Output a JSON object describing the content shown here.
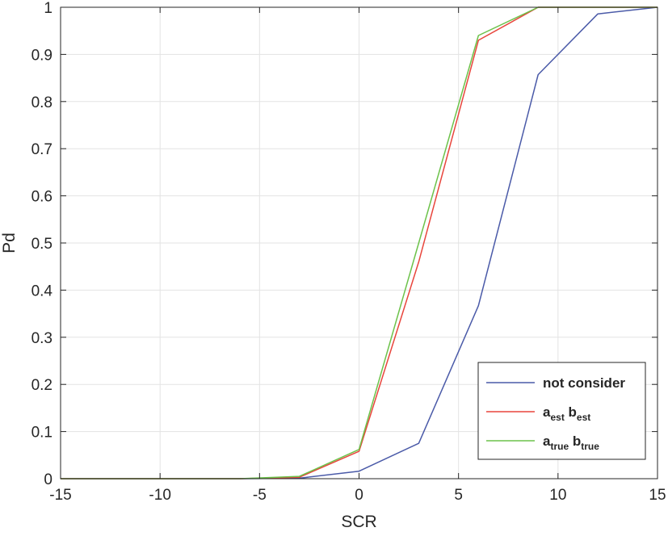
{
  "chart_data": {
    "type": "line",
    "title": "",
    "xlabel": "SCR",
    "ylabel": "Pd",
    "xlim": [
      -15,
      15
    ],
    "ylim": [
      0,
      1
    ],
    "xticks": [
      -15,
      -10,
      -5,
      0,
      5,
      10,
      15
    ],
    "xtick_labels": [
      "-15",
      "-10",
      "-5",
      "0",
      "5",
      "10",
      "15"
    ],
    "yticks": [
      0,
      0.1,
      0.2,
      0.3,
      0.4,
      0.5,
      0.6,
      0.7,
      0.8,
      0.9,
      1
    ],
    "ytick_labels": [
      "0",
      "0.1",
      "0.2",
      "0.3",
      "0.4",
      "0.5",
      "0.6",
      "0.7",
      "0.8",
      "0.9",
      "1"
    ],
    "grid": true,
    "legend_position": "bottom-right",
    "x": [
      -15,
      -12,
      -9,
      -6,
      -3,
      0,
      3,
      6,
      9,
      12,
      15
    ],
    "series": [
      {
        "name": "not consider",
        "color": "#4a5aa8",
        "values": [
          0,
          0,
          0,
          0,
          0.001,
          0.016,
          0.075,
          0.367,
          0.857,
          0.986,
          1
        ]
      },
      {
        "name": "a_est b_est",
        "legend_parts": [
          {
            "text": "a",
            "sub": "est"
          },
          {
            "text": "b",
            "sub": "est"
          }
        ],
        "color": "#e8453c",
        "values": [
          0,
          0,
          0,
          0,
          0.003,
          0.058,
          0.46,
          0.93,
          1,
          1,
          1
        ]
      },
      {
        "name": "a_true b_true",
        "legend_parts": [
          {
            "text": "a",
            "sub": "true"
          },
          {
            "text": "b",
            "sub": "true"
          }
        ],
        "color": "#6cc24a",
        "values": [
          0,
          0,
          0,
          0,
          0.005,
          0.062,
          0.5,
          0.94,
          1,
          1,
          1
        ]
      }
    ]
  }
}
